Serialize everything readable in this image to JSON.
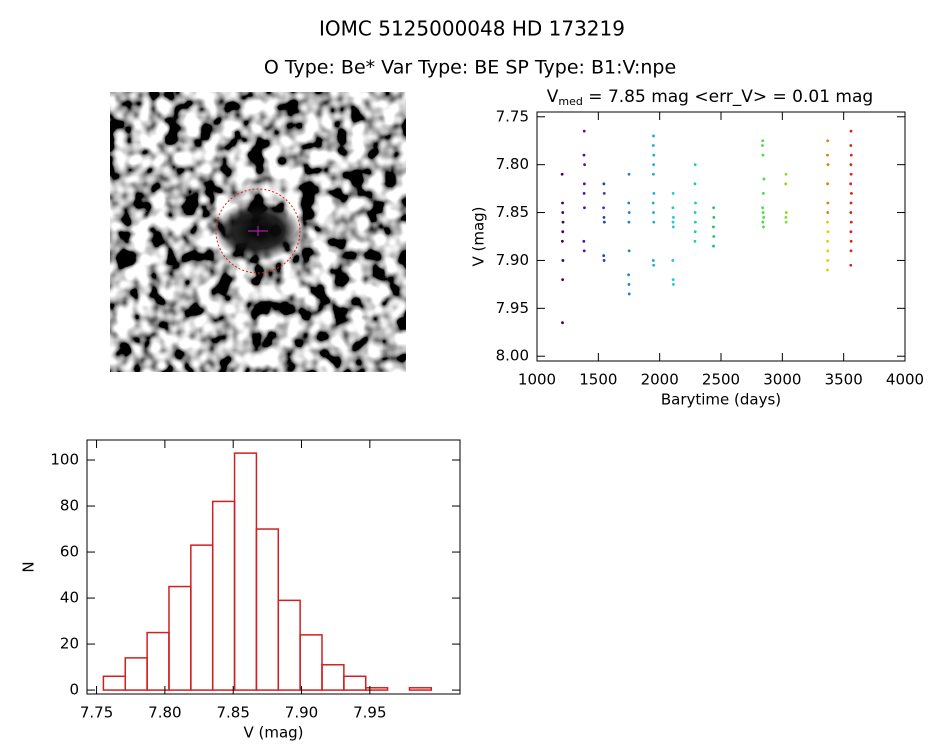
{
  "figure": {
    "title": "IOMC 5125000048    HD 173219",
    "subtitle": "O Type: Be*  Var Type: BE  SP Type: B1:V:npe"
  },
  "chart_data": [
    {
      "type": "scatter",
      "title": "V",
      "title_sub": "med",
      "title_rest": " = 7.85 mag <err_V> = 0.01 mag",
      "x_label": "Barytime (days)",
      "y_label": "V (mag)",
      "xlim": [
        1000,
        4000
      ],
      "xticks": [
        1000,
        1500,
        2000,
        2500,
        3000,
        3500,
        4000
      ],
      "ylim": [
        7.745,
        8.005
      ],
      "y_inverted": true,
      "yticks": [
        7.75,
        {
          "value": 7.8,
          "label": "7.80"
        },
        7.85,
        {
          "value": 7.9,
          "label": "7.90"
        },
        7.95,
        {
          "value": 8.0,
          "label": "8.00"
        }
      ],
      "series": [
        {
          "color": "#3a0060",
          "x": [
            1205,
            1208,
            1210,
            1212,
            1210,
            1207,
            1211,
            1209,
            1208
          ],
          "values": [
            7.81,
            7.84,
            7.85,
            7.86,
            7.87,
            7.88,
            7.9,
            7.92,
            7.965
          ]
        },
        {
          "color": "#5010a0",
          "x": [
            1385,
            1383,
            1388,
            1386,
            1384,
            1387,
            1382,
            1385
          ],
          "values": [
            7.765,
            7.79,
            7.8,
            7.82,
            7.83,
            7.845,
            7.88,
            7.89
          ]
        },
        {
          "color": "#2040c0",
          "x": [
            1545,
            1548,
            1543,
            1546,
            1549,
            1544,
            1547
          ],
          "values": [
            7.82,
            7.83,
            7.845,
            7.855,
            7.86,
            7.895,
            7.9
          ]
        },
        {
          "color": "#2080d0",
          "x": [
            1750,
            1748,
            1752,
            1749,
            1751,
            1747,
            1750,
            1752
          ],
          "values": [
            7.81,
            7.84,
            7.85,
            7.86,
            7.89,
            7.915,
            7.925,
            7.935
          ]
        },
        {
          "color": "#20a8e0",
          "x": [
            1950,
            1948,
            1952,
            1951,
            1949,
            1953,
            1947,
            1950,
            1952,
            1948,
            1951
          ],
          "values": [
            7.77,
            7.78,
            7.79,
            7.8,
            7.81,
            7.83,
            7.84,
            7.85,
            7.86,
            7.9,
            7.905
          ]
        },
        {
          "color": "#20c8d0",
          "x": [
            2110,
            2108,
            2112,
            2109,
            2111,
            2107,
            2110,
            2112
          ],
          "values": [
            7.83,
            7.845,
            7.855,
            7.86,
            7.865,
            7.9,
            7.92,
            7.925
          ]
        },
        {
          "color": "#20d0a0",
          "x": [
            2290,
            2288,
            2292,
            2289,
            2291,
            2290,
            2288
          ],
          "values": [
            7.8,
            7.82,
            7.84,
            7.85,
            7.86,
            7.87,
            7.88
          ]
        },
        {
          "color": "#20c070",
          "x": [
            2440,
            2442,
            2438,
            2441,
            2439
          ],
          "values": [
            7.845,
            7.855,
            7.865,
            7.875,
            7.885
          ]
        },
        {
          "color": "#40e040",
          "x": [
            2840,
            2838,
            2842,
            2850,
            2845,
            2839,
            2843,
            2848,
            2841,
            2846
          ],
          "values": [
            7.775,
            7.78,
            7.79,
            7.815,
            7.83,
            7.845,
            7.85,
            7.855,
            7.86,
            7.865
          ]
        },
        {
          "color": "#80e020",
          "x": [
            3030,
            3028,
            3032,
            3029,
            3031
          ],
          "values": [
            7.81,
            7.82,
            7.85,
            7.855,
            7.86
          ]
        },
        {
          "color": "#e08000",
          "x": [
            3370,
            3368,
            3372,
            3369,
            3371,
            3370
          ],
          "values": [
            7.775,
            7.79,
            7.8,
            7.82,
            7.84,
            7.85
          ]
        },
        {
          "color": "#e0d000",
          "x": [
            3368,
            3372,
            3369,
            3371,
            3370,
            3368
          ],
          "values": [
            7.86,
            7.87,
            7.88,
            7.89,
            7.9,
            7.91
          ]
        },
        {
          "color": "#e02010",
          "x": [
            3560,
            3558,
            3562,
            3559,
            3561,
            3557,
            3563,
            3560,
            3558,
            3562,
            3559,
            3561,
            3560,
            3558
          ],
          "values": [
            7.765,
            7.78,
            7.79,
            7.8,
            7.81,
            7.82,
            7.83,
            7.84,
            7.85,
            7.86,
            7.87,
            7.88,
            7.89,
            7.905
          ]
        }
      ]
    },
    {
      "type": "histogram",
      "x_label": "V (mag)",
      "y_label": "N",
      "color": "#d02020",
      "bins": [
        7.755,
        7.771,
        7.787,
        7.803,
        7.819,
        7.835,
        7.851,
        7.867,
        7.883,
        7.899,
        7.915,
        7.931,
        7.947,
        7.963,
        7.979,
        7.995
      ],
      "values": [
        6,
        14,
        25,
        45,
        63,
        82,
        103,
        70,
        39,
        24,
        11,
        6,
        1,
        0,
        1
      ],
      "xlim": [
        7.743,
        8.016
      ],
      "xticks": [
        7.75,
        {
          "value": 7.8,
          "label": "7.80"
        },
        7.85,
        {
          "value": 7.9,
          "label": "7.90"
        },
        7.95
      ],
      "ylim": [
        -1.7,
        108.7
      ],
      "yticks": [
        0,
        20,
        40,
        60,
        80,
        100
      ]
    }
  ]
}
